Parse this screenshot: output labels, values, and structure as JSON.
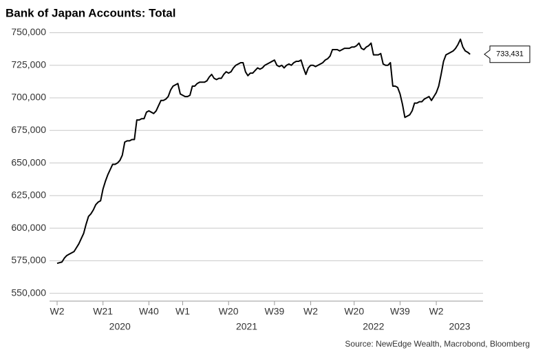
{
  "chart_data": {
    "type": "line",
    "title": "Bank of Japan Accounts: Total",
    "source": "Source: NewEdge Wealth, Macrobond, Bloomberg",
    "categories": [
      "W2",
      null,
      null,
      null,
      null,
      null,
      null,
      null,
      null,
      null,
      null,
      null,
      null,
      null,
      null,
      null,
      null,
      null,
      null,
      "W21",
      null,
      null,
      null,
      null,
      null,
      null,
      null,
      null,
      null,
      null,
      null,
      null,
      null,
      null,
      null,
      null,
      null,
      null,
      "W40",
      null,
      null,
      null,
      null,
      null,
      null,
      null,
      null,
      null,
      null,
      null,
      null,
      null,
      "W1",
      null,
      null,
      null,
      null,
      null,
      null,
      null,
      null,
      null,
      null,
      null,
      null,
      null,
      null,
      null,
      null,
      null,
      null,
      "W20",
      null,
      null,
      null,
      null,
      null,
      null,
      null,
      null,
      null,
      null,
      null,
      null,
      null,
      null,
      null,
      null,
      null,
      null,
      "W39",
      null,
      null,
      null,
      null,
      null,
      null,
      null,
      null,
      null,
      null,
      null,
      null,
      null,
      null,
      "W2",
      null,
      null,
      null,
      null,
      null,
      null,
      null,
      null,
      null,
      null,
      null,
      null,
      null,
      null,
      null,
      null,
      null,
      "W20",
      null,
      null,
      null,
      null,
      null,
      null,
      null,
      null,
      null,
      null,
      null,
      null,
      null,
      null,
      null,
      null,
      null,
      null,
      "W39",
      null,
      null,
      null,
      null,
      null,
      null,
      null,
      null,
      null,
      null,
      null,
      null,
      null,
      null,
      "W2",
      null,
      null,
      null,
      null,
      null,
      null,
      null,
      null,
      null,
      null,
      null,
      null,
      null,
      null
    ],
    "year_labels": [
      "2020",
      "2021",
      "2022",
      "2023"
    ],
    "series": [
      {
        "name": "Bank of Japan Accounts: Total",
        "color": "#000000",
        "values": [
          573000,
          573500,
          574000,
          577000,
          579000,
          580000,
          581000,
          582000,
          585000,
          588000,
          592000,
          596000,
          603000,
          609000,
          611000,
          614000,
          618000,
          620000,
          621000,
          630000,
          636000,
          641000,
          645000,
          649000,
          649000,
          650000,
          652000,
          656000,
          666000,
          667000,
          667000,
          668000,
          668000,
          683000,
          683000,
          684000,
          684000,
          689000,
          690000,
          689000,
          688000,
          690000,
          694000,
          698000,
          698000,
          699000,
          701000,
          706000,
          709000,
          710000,
          711000,
          703000,
          702000,
          701000,
          701000,
          702000,
          709000,
          709000,
          711000,
          712000,
          712000,
          712000,
          713000,
          716000,
          718000,
          715000,
          714000,
          715000,
          715000,
          718000,
          720000,
          719000,
          720000,
          723000,
          725000,
          726000,
          727000,
          727000,
          720000,
          717000,
          719000,
          719000,
          721000,
          723000,
          722000,
          723000,
          725000,
          726000,
          727000,
          728000,
          729000,
          725000,
          724000,
          725000,
          723000,
          725000,
          726000,
          725000,
          727000,
          728000,
          728000,
          729000,
          723000,
          718000,
          723000,
          725000,
          725000,
          724000,
          725000,
          726000,
          727000,
          729000,
          730000,
          732000,
          737000,
          737000,
          737000,
          736000,
          737000,
          738000,
          738000,
          738000,
          739000,
          739000,
          740000,
          742000,
          738000,
          737000,
          739000,
          740000,
          742000,
          733000,
          733000,
          733000,
          734000,
          726000,
          725000,
          725000,
          727000,
          709000,
          709000,
          708000,
          703000,
          695000,
          685000,
          686000,
          687000,
          690000,
          696000,
          696000,
          697000,
          697000,
          699000,
          700000,
          701000,
          698000,
          701000,
          704000,
          709000,
          718000,
          728000,
          733000,
          734000,
          735000,
          736000,
          738000,
          741000,
          745000,
          739000,
          736000,
          735000,
          733431
        ],
        "last_value_label": "733,431"
      }
    ],
    "ylim": [
      544000,
      755000
    ],
    "yticks": [
      {
        "value": 550000,
        "label": "550,000"
      },
      {
        "value": 575000,
        "label": "575,000"
      },
      {
        "value": 600000,
        "label": "600,000"
      },
      {
        "value": 625000,
        "label": "625,000"
      },
      {
        "value": 650000,
        "label": "650,000"
      },
      {
        "value": 675000,
        "label": "675,000"
      },
      {
        "value": 700000,
        "label": "700,000"
      },
      {
        "value": 725000,
        "label": "725,000"
      },
      {
        "value": 750000,
        "label": "750,000"
      }
    ],
    "grid": true
  }
}
